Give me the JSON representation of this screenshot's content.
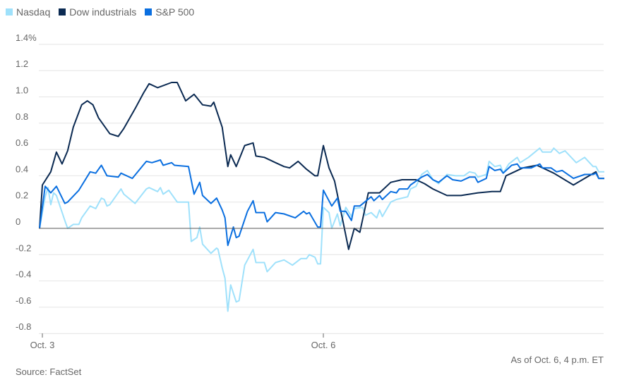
{
  "chart_data": {
    "type": "line",
    "title": "",
    "xlabel": "",
    "ylabel": "",
    "x_ticks": [
      {
        "x": 0,
        "label": "Oct. 3"
      },
      {
        "x": 1,
        "label": "Oct. 6"
      }
    ],
    "xlim": [
      0,
      2
    ],
    "ylim": [
      -0.8,
      1.4
    ],
    "y_ticks": [
      {
        "v": 1.4,
        "label": "1.4%"
      },
      {
        "v": 1.2,
        "label": "1.2"
      },
      {
        "v": 1.0,
        "label": "1.0"
      },
      {
        "v": 0.8,
        "label": "0.8"
      },
      {
        "v": 0.6,
        "label": "0.6"
      },
      {
        "v": 0.4,
        "label": "0.4"
      },
      {
        "v": 0.2,
        "label": "0.2"
      },
      {
        "v": 0,
        "label": "0"
      },
      {
        "v": -0.2,
        "label": "-0.2"
      },
      {
        "v": -0.4,
        "label": "-0.4"
      },
      {
        "v": -0.6,
        "label": "-0.6"
      },
      {
        "v": -0.8,
        "label": "-0.8"
      }
    ],
    "grid": true,
    "legend_position": "top-left",
    "series": [
      {
        "name": "Nasdaq",
        "color": "#9fe1fb",
        "points": [
          [
            -0.01,
            0
          ],
          [
            0.01,
            0.24
          ],
          [
            0.02,
            0.31
          ],
          [
            0.03,
            0.18
          ],
          [
            0.04,
            0.27
          ],
          [
            0.05,
            0.25
          ],
          [
            0.08,
            0.06
          ],
          [
            0.09,
            0
          ],
          [
            0.11,
            0.03
          ],
          [
            0.13,
            0.03
          ],
          [
            0.14,
            0.08
          ],
          [
            0.17,
            0.17
          ],
          [
            0.19,
            0.15
          ],
          [
            0.21,
            0.23
          ],
          [
            0.22,
            0.22
          ],
          [
            0.23,
            0.17
          ],
          [
            0.24,
            0.18
          ],
          [
            0.26,
            0.24
          ],
          [
            0.28,
            0.3
          ],
          [
            0.29,
            0.26
          ],
          [
            0.33,
            0.19
          ],
          [
            0.37,
            0.3
          ],
          [
            0.38,
            0.31
          ],
          [
            0.41,
            0.28
          ],
          [
            0.42,
            0.31
          ],
          [
            0.43,
            0.26
          ],
          [
            0.45,
            0.29
          ],
          [
            0.48,
            0.2
          ],
          [
            0.52,
            0.2
          ],
          [
            0.53,
            -0.1
          ],
          [
            0.55,
            -0.07
          ],
          [
            0.56,
            0.01
          ],
          [
            0.57,
            -0.12
          ],
          [
            0.6,
            -0.19
          ],
          [
            0.62,
            -0.15
          ],
          [
            0.625,
            -0.16
          ],
          [
            0.64,
            -0.3
          ],
          [
            0.65,
            -0.38
          ],
          [
            0.66,
            -0.63
          ],
          [
            0.67,
            -0.43
          ],
          [
            0.69,
            -0.56
          ],
          [
            0.7,
            -0.55
          ],
          [
            0.72,
            -0.28
          ],
          [
            0.75,
            -0.16
          ],
          [
            0.76,
            -0.26
          ],
          [
            0.79,
            -0.26
          ],
          [
            0.8,
            -0.33
          ],
          [
            0.83,
            -0.26
          ],
          [
            0.86,
            -0.24
          ],
          [
            0.89,
            -0.28
          ],
          [
            0.92,
            -0.23
          ],
          [
            0.94,
            -0.23
          ],
          [
            0.95,
            -0.2
          ],
          [
            0.97,
            -0.22
          ],
          [
            0.98,
            -0.27
          ],
          [
            0.99,
            -0.27
          ],
          [
            1.0,
            0.16
          ],
          [
            1.02,
            0.12
          ],
          [
            1.03,
            0.0
          ],
          [
            1.05,
            0.11
          ],
          [
            1.06,
            0.02
          ],
          [
            1.08,
            0.16
          ],
          [
            1.1,
            0.09
          ],
          [
            1.11,
            0.15
          ],
          [
            1.14,
            0.16
          ],
          [
            1.15,
            0.1
          ],
          [
            1.17,
            0.12
          ],
          [
            1.19,
            0.08
          ],
          [
            1.2,
            0.14
          ],
          [
            1.21,
            0.09
          ],
          [
            1.24,
            0.2
          ],
          [
            1.26,
            0.22
          ],
          [
            1.3,
            0.24
          ],
          [
            1.31,
            0.3
          ],
          [
            1.33,
            0.32
          ],
          [
            1.35,
            0.41
          ],
          [
            1.37,
            0.44
          ],
          [
            1.39,
            0.37
          ],
          [
            1.41,
            0.34
          ],
          [
            1.44,
            0.41
          ],
          [
            1.47,
            0.4
          ],
          [
            1.5,
            0.4
          ],
          [
            1.52,
            0.43
          ],
          [
            1.54,
            0.42
          ],
          [
            1.55,
            0.39
          ],
          [
            1.58,
            0.41
          ],
          [
            1.59,
            0.51
          ],
          [
            1.61,
            0.47
          ],
          [
            1.63,
            0.48
          ],
          [
            1.64,
            0.42
          ],
          [
            1.66,
            0.49
          ],
          [
            1.69,
            0.54
          ],
          [
            1.7,
            0.5
          ],
          [
            1.73,
            0.54
          ],
          [
            1.77,
            0.61
          ],
          [
            1.78,
            0.58
          ],
          [
            1.81,
            0.58
          ],
          [
            1.82,
            0.61
          ],
          [
            1.84,
            0.57
          ],
          [
            1.86,
            0.59
          ],
          [
            1.9,
            0.5
          ],
          [
            1.93,
            0.54
          ],
          [
            1.96,
            0.47
          ],
          [
            1.97,
            0.47
          ],
          [
            1.98,
            0.43
          ],
          [
            2.0,
            0.43
          ]
        ]
      },
      {
        "name": "Dow industrials",
        "color": "#0b2a52",
        "points": [
          [
            -0.01,
            0
          ],
          [
            0,
            0.33
          ],
          [
            0.03,
            0.43
          ],
          [
            0.05,
            0.58
          ],
          [
            0.07,
            0.49
          ],
          [
            0.09,
            0.59
          ],
          [
            0.11,
            0.77
          ],
          [
            0.14,
            0.94
          ],
          [
            0.16,
            0.97
          ],
          [
            0.18,
            0.94
          ],
          [
            0.2,
            0.84
          ],
          [
            0.24,
            0.72
          ],
          [
            0.27,
            0.7
          ],
          [
            0.29,
            0.76
          ],
          [
            0.33,
            0.91
          ],
          [
            0.36,
            1.03
          ],
          [
            0.38,
            1.1
          ],
          [
            0.41,
            1.07
          ],
          [
            0.46,
            1.11
          ],
          [
            0.48,
            1.11
          ],
          [
            0.51,
            0.97
          ],
          [
            0.54,
            1.02
          ],
          [
            0.57,
            0.94
          ],
          [
            0.6,
            0.93
          ],
          [
            0.61,
            0.96
          ],
          [
            0.64,
            0.77
          ],
          [
            0.66,
            0.47
          ],
          [
            0.67,
            0.56
          ],
          [
            0.69,
            0.47
          ],
          [
            0.72,
            0.63
          ],
          [
            0.75,
            0.65
          ],
          [
            0.76,
            0.55
          ],
          [
            0.79,
            0.54
          ],
          [
            0.83,
            0.5
          ],
          [
            0.86,
            0.47
          ],
          [
            0.88,
            0.46
          ],
          [
            0.91,
            0.51
          ],
          [
            0.94,
            0.45
          ],
          [
            0.97,
            0.4
          ],
          [
            0.98,
            0.4
          ],
          [
            1.0,
            0.63
          ],
          [
            1.02,
            0.46
          ],
          [
            1.04,
            0.36
          ],
          [
            1.07,
            0.05
          ],
          [
            1.09,
            -0.16
          ],
          [
            1.11,
            0
          ],
          [
            1.13,
            -0.03
          ],
          [
            1.16,
            0.27
          ],
          [
            1.2,
            0.27
          ],
          [
            1.24,
            0.35
          ],
          [
            1.28,
            0.37
          ],
          [
            1.33,
            0.37
          ],
          [
            1.36,
            0.34
          ],
          [
            1.39,
            0.3
          ],
          [
            1.44,
            0.25
          ],
          [
            1.49,
            0.25
          ],
          [
            1.55,
            0.27
          ],
          [
            1.6,
            0.28
          ],
          [
            1.63,
            0.28
          ],
          [
            1.65,
            0.4
          ],
          [
            1.67,
            0.42
          ],
          [
            1.71,
            0.46
          ],
          [
            1.76,
            0.48
          ],
          [
            1.82,
            0.42
          ],
          [
            1.89,
            0.33
          ],
          [
            1.93,
            0.38
          ],
          [
            1.97,
            0.43
          ],
          [
            1.98,
            0.38
          ],
          [
            2.0,
            0.38
          ]
        ]
      },
      {
        "name": "S&P 500",
        "color": "#0a6fe0",
        "points": [
          [
            -0.01,
            0
          ],
          [
            0.01,
            0.32
          ],
          [
            0.03,
            0.27
          ],
          [
            0.05,
            0.32
          ],
          [
            0.08,
            0.19
          ],
          [
            0.09,
            0.2
          ],
          [
            0.13,
            0.29
          ],
          [
            0.17,
            0.43
          ],
          [
            0.19,
            0.42
          ],
          [
            0.21,
            0.48
          ],
          [
            0.23,
            0.4
          ],
          [
            0.27,
            0.39
          ],
          [
            0.28,
            0.42
          ],
          [
            0.32,
            0.38
          ],
          [
            0.37,
            0.51
          ],
          [
            0.39,
            0.5
          ],
          [
            0.42,
            0.52
          ],
          [
            0.43,
            0.48
          ],
          [
            0.46,
            0.5
          ],
          [
            0.47,
            0.48
          ],
          [
            0.52,
            0.47
          ],
          [
            0.54,
            0.26
          ],
          [
            0.56,
            0.35
          ],
          [
            0.57,
            0.25
          ],
          [
            0.6,
            0.19
          ],
          [
            0.62,
            0.23
          ],
          [
            0.64,
            0.14
          ],
          [
            0.65,
            0.08
          ],
          [
            0.66,
            -0.13
          ],
          [
            0.68,
            0.01
          ],
          [
            0.69,
            -0.07
          ],
          [
            0.7,
            -0.06
          ],
          [
            0.73,
            0.13
          ],
          [
            0.75,
            0.21
          ],
          [
            0.76,
            0.12
          ],
          [
            0.79,
            0.12
          ],
          [
            0.8,
            0.05
          ],
          [
            0.83,
            0.12
          ],
          [
            0.86,
            0.11
          ],
          [
            0.9,
            0.08
          ],
          [
            0.93,
            0.13
          ],
          [
            0.94,
            0.11
          ],
          [
            0.95,
            0.12
          ],
          [
            0.98,
            0.01
          ],
          [
            0.99,
            0.01
          ],
          [
            1.0,
            0.29
          ],
          [
            1.03,
            0.17
          ],
          [
            1.05,
            0.23
          ],
          [
            1.06,
            0.13
          ],
          [
            1.08,
            0.13
          ],
          [
            1.1,
            0.06
          ],
          [
            1.11,
            0.17
          ],
          [
            1.13,
            0.17
          ],
          [
            1.17,
            0.24
          ],
          [
            1.18,
            0.21
          ],
          [
            1.2,
            0.25
          ],
          [
            1.21,
            0.22
          ],
          [
            1.24,
            0.28
          ],
          [
            1.26,
            0.27
          ],
          [
            1.27,
            0.3
          ],
          [
            1.3,
            0.3
          ],
          [
            1.31,
            0.33
          ],
          [
            1.35,
            0.39
          ],
          [
            1.37,
            0.41
          ],
          [
            1.39,
            0.37
          ],
          [
            1.41,
            0.35
          ],
          [
            1.44,
            0.4
          ],
          [
            1.46,
            0.37
          ],
          [
            1.49,
            0.36
          ],
          [
            1.52,
            0.39
          ],
          [
            1.54,
            0.39
          ],
          [
            1.55,
            0.35
          ],
          [
            1.58,
            0.38
          ],
          [
            1.59,
            0.47
          ],
          [
            1.61,
            0.44
          ],
          [
            1.63,
            0.45
          ],
          [
            1.64,
            0.42
          ],
          [
            1.67,
            0.48
          ],
          [
            1.69,
            0.49
          ],
          [
            1.7,
            0.46
          ],
          [
            1.74,
            0.46
          ],
          [
            1.77,
            0.49
          ],
          [
            1.78,
            0.46
          ],
          [
            1.81,
            0.46
          ],
          [
            1.83,
            0.43
          ],
          [
            1.85,
            0.44
          ],
          [
            1.89,
            0.38
          ],
          [
            1.93,
            0.41
          ],
          [
            1.96,
            0.41
          ],
          [
            1.97,
            0.42
          ],
          [
            1.98,
            0.38
          ],
          [
            2.0,
            0.38
          ]
        ]
      }
    ]
  },
  "notes": {
    "as_of": "As of Oct. 6, 4 p.m. ET",
    "source": "Source: FactSet"
  }
}
